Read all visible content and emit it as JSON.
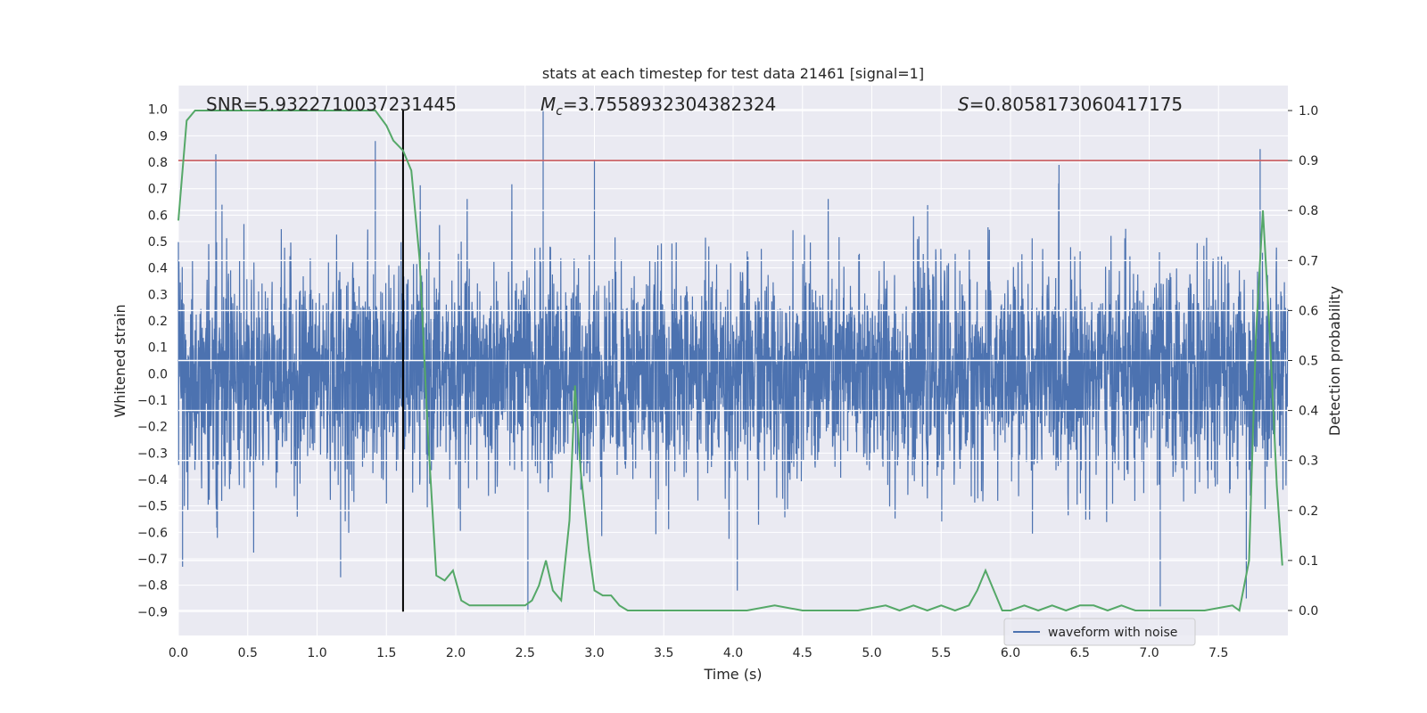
{
  "chart_data": {
    "type": "line",
    "title": "stats at each timestep for test data 21461 [signal=1]",
    "xlabel": "Time (s)",
    "ylabel_left": "Whitened strain",
    "ylabel_right": "Detection probability",
    "xlim": [
      0.0,
      8.0
    ],
    "ylim_left": [
      -0.99,
      1.09
    ],
    "ylim_right": [
      -0.05,
      1.05
    ],
    "xticks": [
      "0.0",
      "0.5",
      "1.0",
      "1.5",
      "2.0",
      "2.5",
      "3.0",
      "3.5",
      "4.0",
      "4.5",
      "5.0",
      "5.5",
      "6.0",
      "6.5",
      "7.0",
      "7.5"
    ],
    "yticks_left": [
      "−0.9",
      "−0.8",
      "−0.7",
      "−0.6",
      "−0.5",
      "−0.4",
      "−0.3",
      "−0.2",
      "−0.1",
      "0.0",
      "0.1",
      "0.2",
      "0.3",
      "0.4",
      "0.5",
      "0.6",
      "0.7",
      "0.8",
      "0.9",
      "1.0"
    ],
    "yticks_right": [
      "0.0",
      "0.1",
      "0.2",
      "0.3",
      "0.4",
      "0.5",
      "0.6",
      "0.7",
      "0.8",
      "0.9",
      "1.0"
    ],
    "grid": true,
    "legend_position": "lower-right",
    "annotations": {
      "snr": "SNR=5.9322710037231445",
      "mc_symbol": "M",
      "mc_sub": "c",
      "mc_value": "=3.7558932304382324",
      "s_symbol": "S",
      "s_value": "=0.8058173060417175"
    },
    "threshold_line": {
      "value": 0.9,
      "axis": "right",
      "color": "#c44e52"
    },
    "event_marker": {
      "x": 1.62,
      "y_range": [
        -0.9,
        1.0
      ],
      "color": "#000000"
    },
    "series": [
      {
        "name": "waveform with noise",
        "axis": "left",
        "color": "#4c72b0",
        "sample_rate_hz": 2048,
        "duration_s": 8.0,
        "envelope_rms": 0.2,
        "peak_spikes": [
          {
            "x": 0.27,
            "y": 0.83
          },
          {
            "x": 1.42,
            "y": 0.88
          },
          {
            "x": 2.63,
            "y": 1.0
          },
          {
            "x": 3.0,
            "y": 0.81
          },
          {
            "x": 6.35,
            "y": 0.79
          },
          {
            "x": 7.8,
            "y": 0.85
          },
          {
            "x": 0.03,
            "y": -0.73
          },
          {
            "x": 1.17,
            "y": -0.77
          },
          {
            "x": 2.52,
            "y": -0.9
          },
          {
            "x": 4.03,
            "y": -0.82
          },
          {
            "x": 7.08,
            "y": -0.88
          },
          {
            "x": 7.7,
            "y": -0.85
          }
        ]
      },
      {
        "name": "",
        "axis": "right",
        "color": "#55a868",
        "x": [
          0.0,
          0.06,
          0.12,
          0.2,
          0.3,
          0.5,
          0.7,
          0.9,
          1.1,
          1.3,
          1.42,
          1.5,
          1.55,
          1.62,
          1.68,
          1.74,
          1.8,
          1.86,
          1.92,
          1.98,
          2.04,
          2.1,
          2.2,
          2.3,
          2.4,
          2.5,
          2.55,
          2.6,
          2.65,
          2.7,
          2.76,
          2.82,
          2.86,
          2.9,
          2.96,
          3.0,
          3.06,
          3.12,
          3.18,
          3.24,
          3.3,
          3.5,
          3.7,
          3.9,
          4.1,
          4.3,
          4.5,
          4.7,
          4.9,
          5.1,
          5.2,
          5.3,
          5.4,
          5.5,
          5.6,
          5.7,
          5.76,
          5.82,
          5.88,
          5.94,
          6.0,
          6.1,
          6.2,
          6.3,
          6.4,
          6.5,
          6.6,
          6.7,
          6.8,
          6.9,
          7.0,
          7.2,
          7.4,
          7.6,
          7.65,
          7.72,
          7.77,
          7.82,
          7.87,
          7.92,
          7.96
        ],
        "y": [
          0.78,
          0.98,
          1.0,
          1.0,
          1.0,
          1.0,
          1.0,
          1.0,
          1.0,
          1.0,
          1.0,
          0.97,
          0.94,
          0.92,
          0.88,
          0.7,
          0.35,
          0.07,
          0.06,
          0.08,
          0.02,
          0.01,
          0.01,
          0.01,
          0.01,
          0.01,
          0.02,
          0.05,
          0.1,
          0.04,
          0.02,
          0.18,
          0.45,
          0.28,
          0.12,
          0.04,
          0.03,
          0.03,
          0.01,
          0.0,
          0.0,
          0.0,
          0.0,
          0.0,
          0.0,
          0.01,
          0.0,
          0.0,
          0.0,
          0.01,
          0.0,
          0.01,
          0.0,
          0.01,
          0.0,
          0.01,
          0.04,
          0.08,
          0.04,
          0.0,
          0.0,
          0.01,
          0.0,
          0.01,
          0.0,
          0.01,
          0.01,
          0.0,
          0.01,
          0.0,
          0.0,
          0.0,
          0.0,
          0.01,
          0.0,
          0.1,
          0.55,
          0.8,
          0.55,
          0.25,
          0.09
        ]
      }
    ]
  }
}
